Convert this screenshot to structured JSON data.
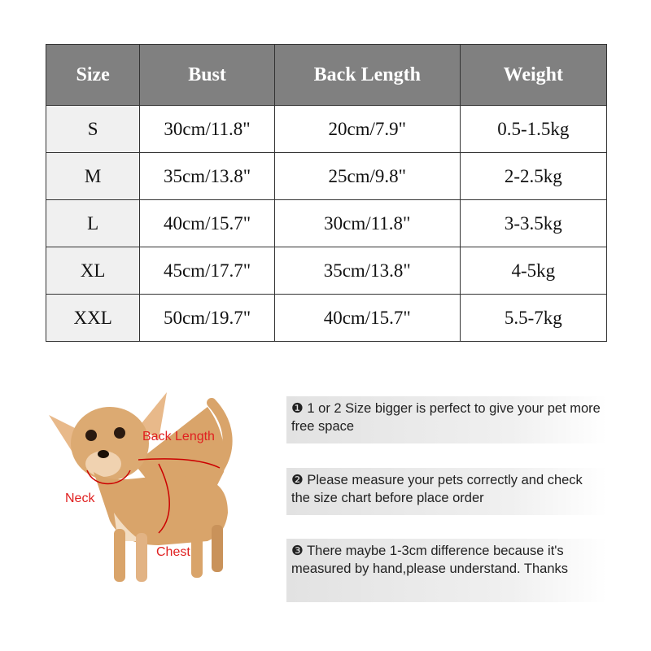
{
  "table": {
    "headers": [
      "Size",
      "Bust",
      "Back Length",
      "Weight"
    ],
    "rows": [
      [
        "S",
        "30cm/11.8\"",
        "20cm/7.9\"",
        "0.5-1.5kg"
      ],
      [
        "M",
        "35cm/13.8\"",
        "25cm/9.8\"",
        "2-2.5kg"
      ],
      [
        "L",
        "40cm/15.7\"",
        "30cm/11.8\"",
        "3-3.5kg"
      ],
      [
        "XL",
        "45cm/17.7\"",
        "35cm/13.8\"",
        "4-5kg"
      ],
      [
        "XXL",
        "50cm/19.7\"",
        "40cm/15.7\"",
        "5.5-7kg"
      ]
    ]
  },
  "diagram": {
    "back_length": "Back Length",
    "neck": "Neck",
    "chest": "Chest"
  },
  "notes": [
    {
      "marker": "❶",
      "text": "1 or 2 Size bigger is perfect to give your pet more free space"
    },
    {
      "marker": "❷",
      "text": "Please measure your pets correctly and check the size chart before place order"
    },
    {
      "marker": "❸",
      "text": "There maybe 1-3cm difference because it's measured by hand,please understand. Thanks"
    }
  ],
  "colors": {
    "header_bg": "#808080",
    "label_red": "#e02020"
  }
}
